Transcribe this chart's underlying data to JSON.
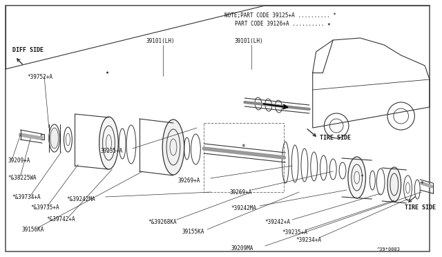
{
  "bg_color": "#ffffff",
  "line_color": "#333333",
  "text_color": "#111111",
  "note_line1": "NOTE;PART CODE 39125+A ........... *",
  "note_line2": "PART CODE 39126+A ........... ★",
  "diagram_code": "^39*0083"
}
